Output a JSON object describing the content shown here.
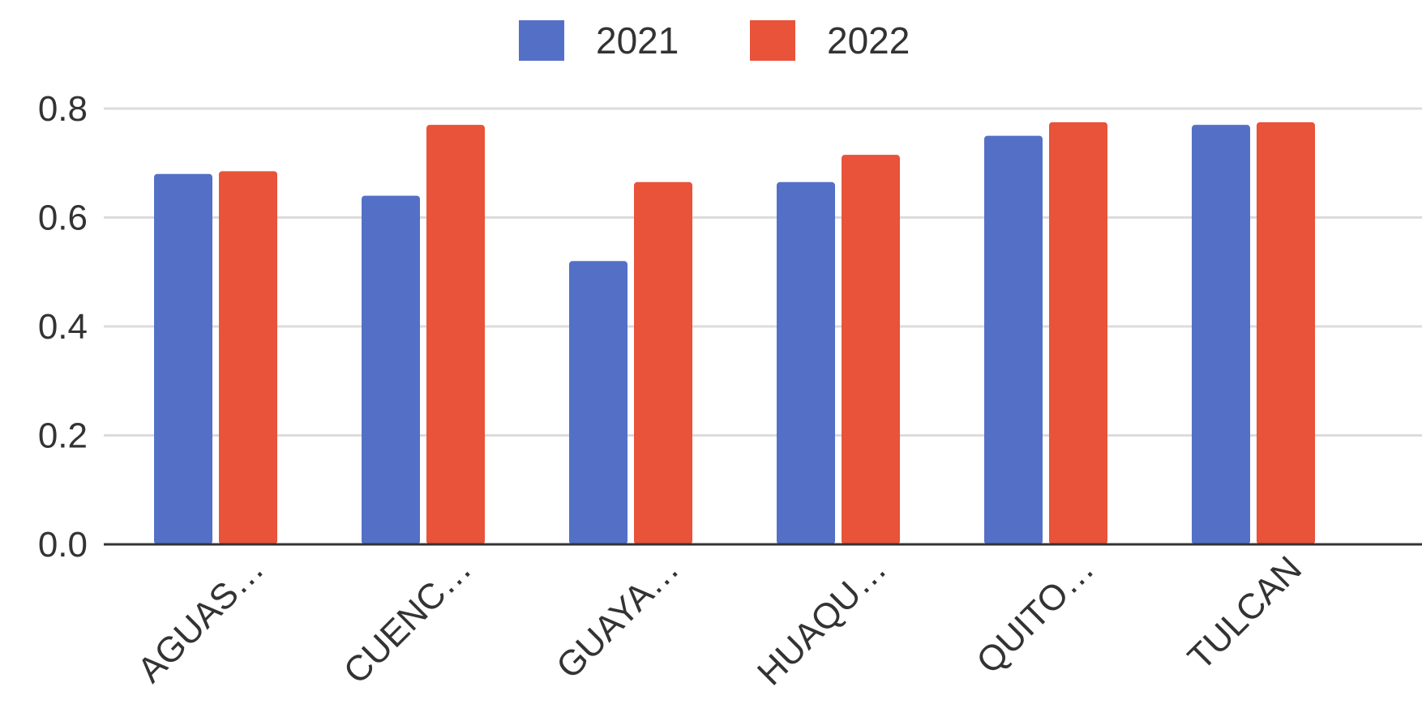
{
  "chart_data": {
    "type": "bar",
    "categories": [
      "AGUAS…",
      "CUENC…",
      "GUAYA…",
      "HUAQU…",
      "QUITO…",
      "TULCAN"
    ],
    "series": [
      {
        "name": "2021",
        "color": "#5470c6",
        "values": [
          0.68,
          0.64,
          0.52,
          0.665,
          0.75,
          0.77
        ]
      },
      {
        "name": "2022",
        "color": "#e8533a",
        "values": [
          0.685,
          0.77,
          0.665,
          0.715,
          0.775,
          0.775
        ]
      }
    ],
    "ylim": [
      0,
      0.8
    ],
    "yticks": [
      0.0,
      0.2,
      0.4,
      0.6,
      0.8
    ],
    "ytick_labels": [
      "0.0",
      "0.2",
      "0.4",
      "0.6",
      "0.8"
    ],
    "grid": true,
    "legend": "top-center"
  }
}
